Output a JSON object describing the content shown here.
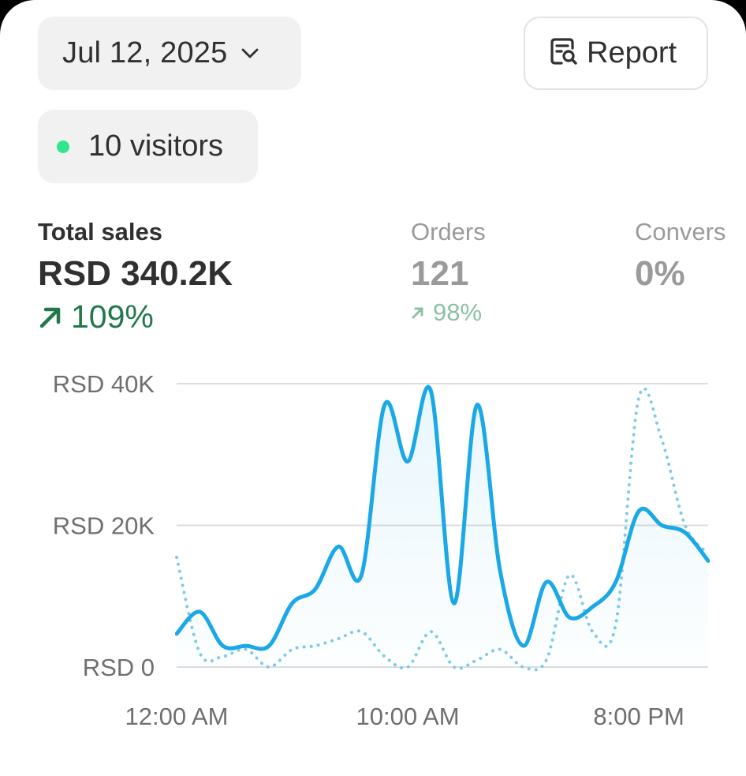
{
  "header": {
    "date_label": "Jul 12, 2025",
    "report_label": "Report"
  },
  "visitors": {
    "label": "10 visitors",
    "dot_color": "#2ee68e"
  },
  "metrics": {
    "total_sales": {
      "title": "Total sales",
      "value": "RSD 340.2K",
      "change": "109%"
    },
    "orders": {
      "title": "Orders",
      "value": "121",
      "change": "98%"
    },
    "conversion": {
      "title": "Convers",
      "value": "0%"
    }
  },
  "icons": {
    "date_chevron": "chevron-down-icon",
    "report": "report-search-icon",
    "trend": "arrow-up-right-icon"
  },
  "colors": {
    "accent_line": "#1aa8e6",
    "comparison_line": "#7fcbea",
    "positive_change": "#21794b"
  },
  "chart_data": {
    "type": "line",
    "y_tick_labels": [
      "RSD 0",
      "RSD 20K",
      "RSD 40K"
    ],
    "y_tick_values": [
      0,
      20000,
      40000
    ],
    "x_tick_labels": [
      "12:00 AM",
      "10:00 AM",
      "8:00 PM"
    ],
    "x_tick_hours": [
      0,
      10,
      20
    ],
    "ylim": [
      0,
      40000
    ],
    "xlim": [
      0,
      23
    ],
    "grid": true,
    "series": [
      {
        "role": "current",
        "style": "solid",
        "color": "#1aa8e6",
        "x": [
          0,
          1,
          2,
          3,
          4,
          5,
          6,
          7,
          8,
          9,
          10,
          11,
          12,
          13,
          14,
          15,
          16,
          17,
          18,
          19,
          20,
          21,
          22,
          23
        ],
        "values": [
          4700,
          7800,
          3000,
          3000,
          3000,
          9000,
          11000,
          17000,
          13000,
          37000,
          29000,
          39000,
          9000,
          37000,
          13500,
          3000,
          12000,
          7000,
          8500,
          12000,
          22000,
          20000,
          19000,
          15000
        ]
      },
      {
        "role": "comparison",
        "style": "dotted",
        "color": "#7fcbea",
        "x": [
          0,
          1,
          2,
          3,
          4,
          5,
          6,
          7,
          8,
          9,
          10,
          11,
          12,
          13,
          14,
          15,
          16,
          17,
          18,
          19,
          20,
          21,
          22,
          23
        ],
        "values": [
          15500,
          2000,
          1500,
          2500,
          0,
          2500,
          3000,
          4000,
          5000,
          1500,
          0,
          5000,
          0,
          1000,
          2500,
          0,
          1000,
          13000,
          5000,
          6000,
          38000,
          32000,
          20000,
          16000
        ]
      }
    ]
  }
}
